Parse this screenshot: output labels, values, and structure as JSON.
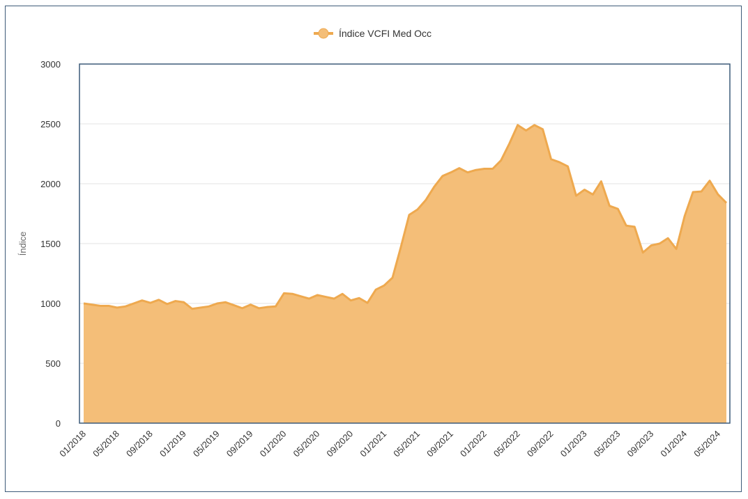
{
  "chart_data": {
    "type": "area",
    "title": "",
    "ylabel": "Índice",
    "xlabel": "",
    "ylim": [
      0,
      3000
    ],
    "yticks": [
      0,
      500,
      1000,
      1500,
      2000,
      2500,
      3000
    ],
    "grid": true,
    "legend_position": "top-center",
    "colors": {
      "fill": "#f4be78",
      "line": "#eea94f",
      "plot_border": "#3c5a78",
      "grid": "#e3e3e3"
    },
    "x_tick_labels": [
      "01/2018",
      "05/2018",
      "09/2018",
      "01/2019",
      "05/2019",
      "09/2019",
      "01/2020",
      "05/2020",
      "09/2020",
      "01/2021",
      "05/2021",
      "09/2021",
      "01/2022",
      "05/2022",
      "09/2022",
      "01/2023",
      "05/2023",
      "09/2023",
      "01/2024",
      "05/2024"
    ],
    "series": [
      {
        "name": "Índice VCFI Med Occ",
        "start": "01/2018",
        "interval": "month",
        "values": [
          1000,
          990,
          980,
          980,
          965,
          975,
          1000,
          1025,
          1005,
          1030,
          995,
          1020,
          1010,
          955,
          965,
          975,
          1000,
          1010,
          985,
          960,
          990,
          960,
          970,
          975,
          1085,
          1080,
          1060,
          1040,
          1070,
          1055,
          1040,
          1080,
          1025,
          1045,
          1005,
          1115,
          1150,
          1215,
          1470,
          1740,
          1785,
          1865,
          1975,
          2065,
          2095,
          2130,
          2095,
          2115,
          2125,
          2125,
          2195,
          2335,
          2490,
          2445,
          2490,
          2455,
          2205,
          2180,
          2145,
          1900,
          1950,
          1910,
          2020,
          1815,
          1790,
          1650,
          1640,
          1425,
          1485,
          1500,
          1545,
          1455,
          1730,
          1930,
          1935,
          2025,
          1910,
          1840
        ]
      }
    ]
  }
}
